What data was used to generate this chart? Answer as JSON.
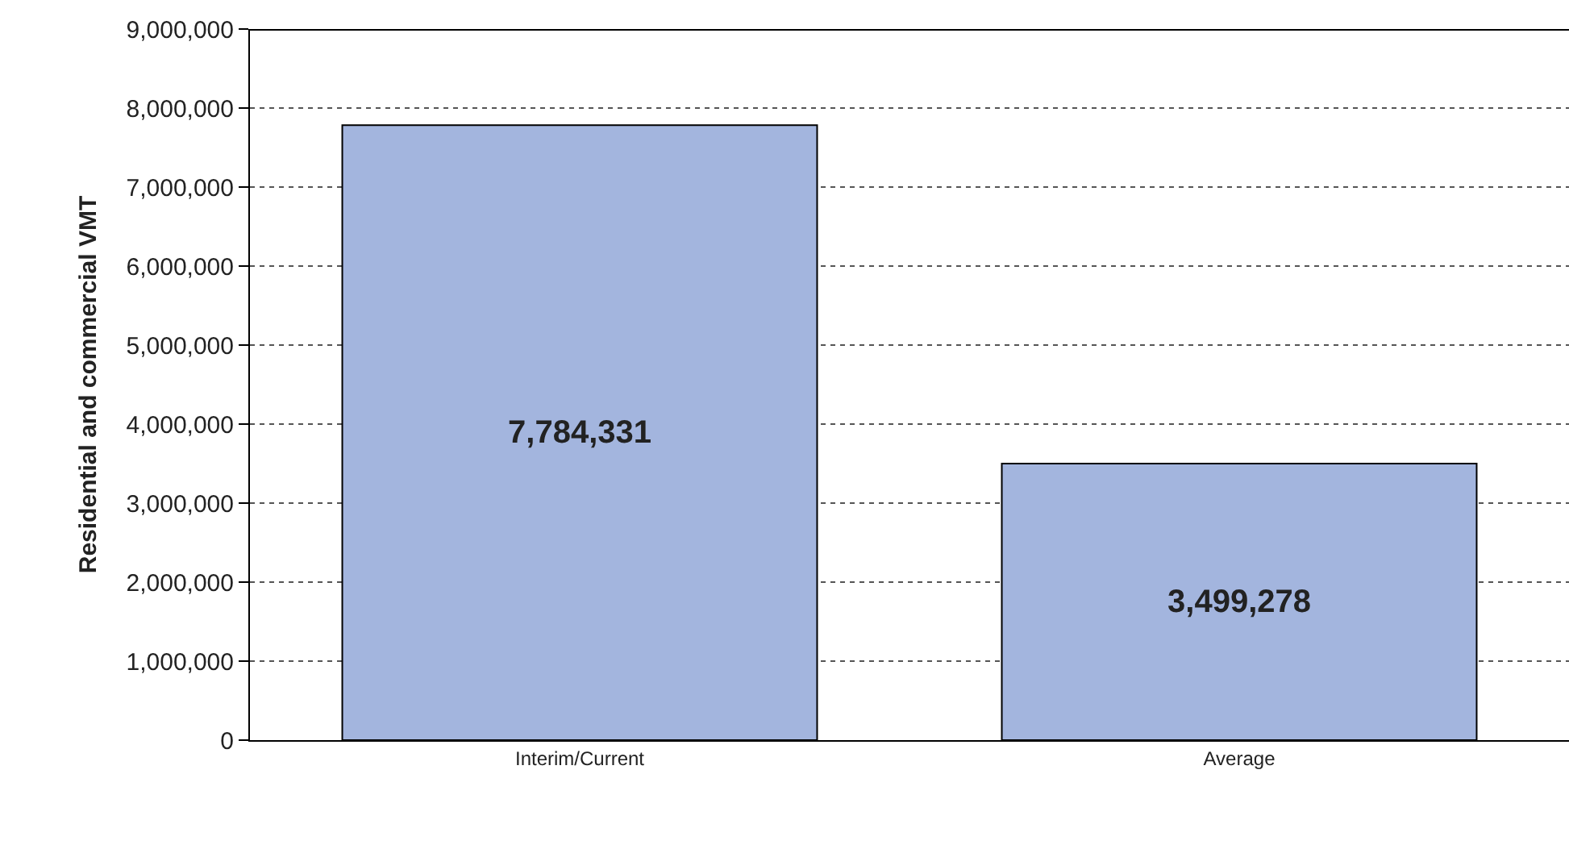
{
  "chart_data": {
    "type": "bar",
    "ylabel": "Residential and commercial VMT",
    "categories": [
      "Interim/Current",
      "Average"
    ],
    "values": [
      7784331,
      3499278
    ],
    "color": "#a3b5de",
    "ylim": [
      0,
      9000000
    ],
    "yticks": [
      {
        "value": 0,
        "label": "0"
      },
      {
        "value": 1000000,
        "label": "1,000,000"
      },
      {
        "value": 2000000,
        "label": "2,000,000"
      },
      {
        "value": 3000000,
        "label": "3,000,000"
      },
      {
        "value": 4000000,
        "label": "4,000,000"
      },
      {
        "value": 5000000,
        "label": "5,000,000"
      },
      {
        "value": 6000000,
        "label": "6,000,000"
      },
      {
        "value": 7000000,
        "label": "7,000,000"
      },
      {
        "value": 8000000,
        "label": "8,000,000"
      },
      {
        "value": 9000000,
        "label": "9,000,000"
      }
    ],
    "grid": "y",
    "value_labels": [
      "7,784,331",
      "3,499,278"
    ]
  }
}
